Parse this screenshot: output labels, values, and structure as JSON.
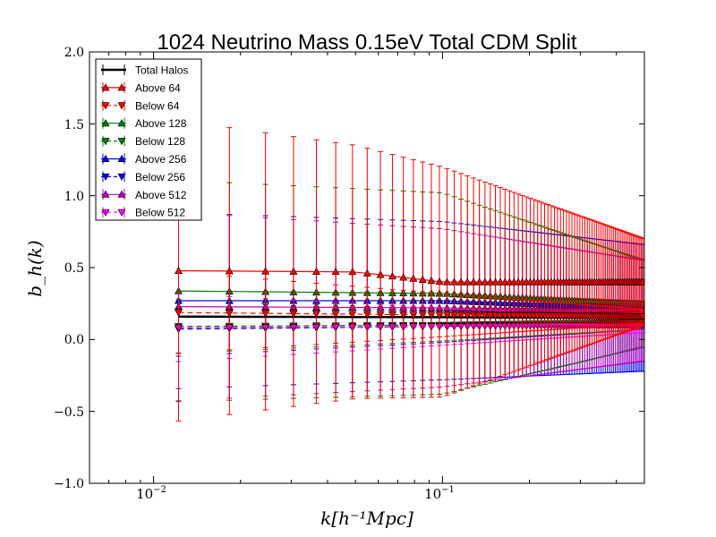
{
  "chart_data": {
    "type": "line",
    "title": "1024 Neutrino Mass 0.15eV Total CDM Split",
    "xlabel": "k[h⁻¹Mpc]",
    "ylabel": "b_h(k)",
    "x_scale": "log",
    "xlim": [
      0.006,
      0.5
    ],
    "ylim": [
      -1.0,
      2.0
    ],
    "grid": false,
    "legend_position": "top-left",
    "y_ticks": [
      "−1.0",
      "−0.5",
      "0.0",
      "0.5",
      "1.0",
      "1.5",
      "2.0"
    ],
    "x_tick_labels": {
      "a": {
        "base": "10",
        "exp": "−2"
      },
      "b": {
        "base": "10",
        "exp": "−1"
      }
    },
    "series": [
      {
        "name": "Total Halos",
        "color": "#000000",
        "marker": "none",
        "linestyle": "solid",
        "values_at_k": [
          [
            0.009,
            0.16
          ],
          [
            0.1,
            0.155
          ],
          [
            0.5,
            0.15
          ]
        ],
        "error_half_width_at_k": [
          [
            0.009,
            0.06
          ],
          [
            0.5,
            0.03
          ]
        ]
      },
      {
        "name": "Above 64",
        "color": "#ff0000",
        "marker": "triangle-up",
        "linestyle": "solid",
        "values_at_k": [
          [
            0.009,
            0.48
          ],
          [
            0.05,
            0.47
          ],
          [
            0.1,
            0.4
          ],
          [
            0.2,
            0.4
          ],
          [
            0.5,
            0.4
          ]
        ],
        "error_half_width_at_k": [
          [
            0.009,
            1.08
          ],
          [
            0.1,
            0.8
          ],
          [
            0.5,
            0.3
          ]
        ]
      },
      {
        "name": "Below 64",
        "color": "#ff0000",
        "marker": "triangle-down",
        "linestyle": "dashed",
        "values_at_k": [
          [
            0.009,
            0.19
          ],
          [
            0.1,
            0.17
          ],
          [
            0.5,
            0.16
          ]
        ],
        "error_half_width_at_k": [
          [
            0.009,
            0.3
          ],
          [
            0.5,
            0.05
          ]
        ]
      },
      {
        "name": "Above 128",
        "color": "#007f00",
        "marker": "triangle-up",
        "linestyle": "solid",
        "values_at_k": [
          [
            0.009,
            0.34
          ],
          [
            0.1,
            0.32
          ],
          [
            0.3,
            0.27
          ],
          [
            0.5,
            0.25
          ]
        ],
        "error_half_width_at_k": [
          [
            0.009,
            0.78
          ],
          [
            0.1,
            0.7
          ],
          [
            0.5,
            0.3
          ]
        ]
      },
      {
        "name": "Below 128",
        "color": "#007f00",
        "marker": "triangle-down",
        "linestyle": "dashed",
        "values_at_k": [
          [
            0.009,
            0.09
          ],
          [
            0.1,
            0.1
          ],
          [
            0.5,
            0.12
          ]
        ],
        "error_half_width_at_k": [
          [
            0.009,
            0.2
          ],
          [
            0.5,
            0.05
          ]
        ]
      },
      {
        "name": "Above 256",
        "color": "#0000ff",
        "marker": "triangle-up",
        "linestyle": "solid",
        "values_at_k": [
          [
            0.009,
            0.27
          ],
          [
            0.1,
            0.27
          ],
          [
            0.5,
            0.22
          ]
        ],
        "error_half_width_at_k": [
          [
            0.009,
            0.62
          ],
          [
            0.1,
            0.55
          ],
          [
            0.5,
            0.44
          ]
        ]
      },
      {
        "name": "Below 256",
        "color": "#0000ff",
        "marker": "triangle-down",
        "linestyle": "dashed",
        "values_at_k": [
          [
            0.009,
            0.07
          ],
          [
            0.1,
            0.09
          ],
          [
            0.5,
            0.12
          ]
        ],
        "error_half_width_at_k": [
          [
            0.009,
            0.2
          ],
          [
            0.5,
            0.05
          ]
        ]
      },
      {
        "name": "Above 512",
        "color": "#bf00bf",
        "marker": "triangle-up",
        "linestyle": "solid",
        "values_at_k": [
          [
            0.009,
            0.23
          ],
          [
            0.1,
            0.22
          ],
          [
            0.5,
            0.2
          ]
        ],
        "error_half_width_at_k": [
          [
            0.009,
            0.67
          ],
          [
            0.1,
            0.55
          ],
          [
            0.5,
            0.35
          ]
        ]
      },
      {
        "name": "Below 512",
        "color": "#ff00ff",
        "marker": "triangle-down",
        "linestyle": "dashed",
        "values_at_k": [
          [
            0.009,
            0.08
          ],
          [
            0.1,
            0.09
          ],
          [
            0.5,
            0.1
          ]
        ],
        "error_half_width_at_k": [
          [
            0.009,
            0.25
          ],
          [
            0.5,
            0.05
          ]
        ]
      }
    ]
  }
}
